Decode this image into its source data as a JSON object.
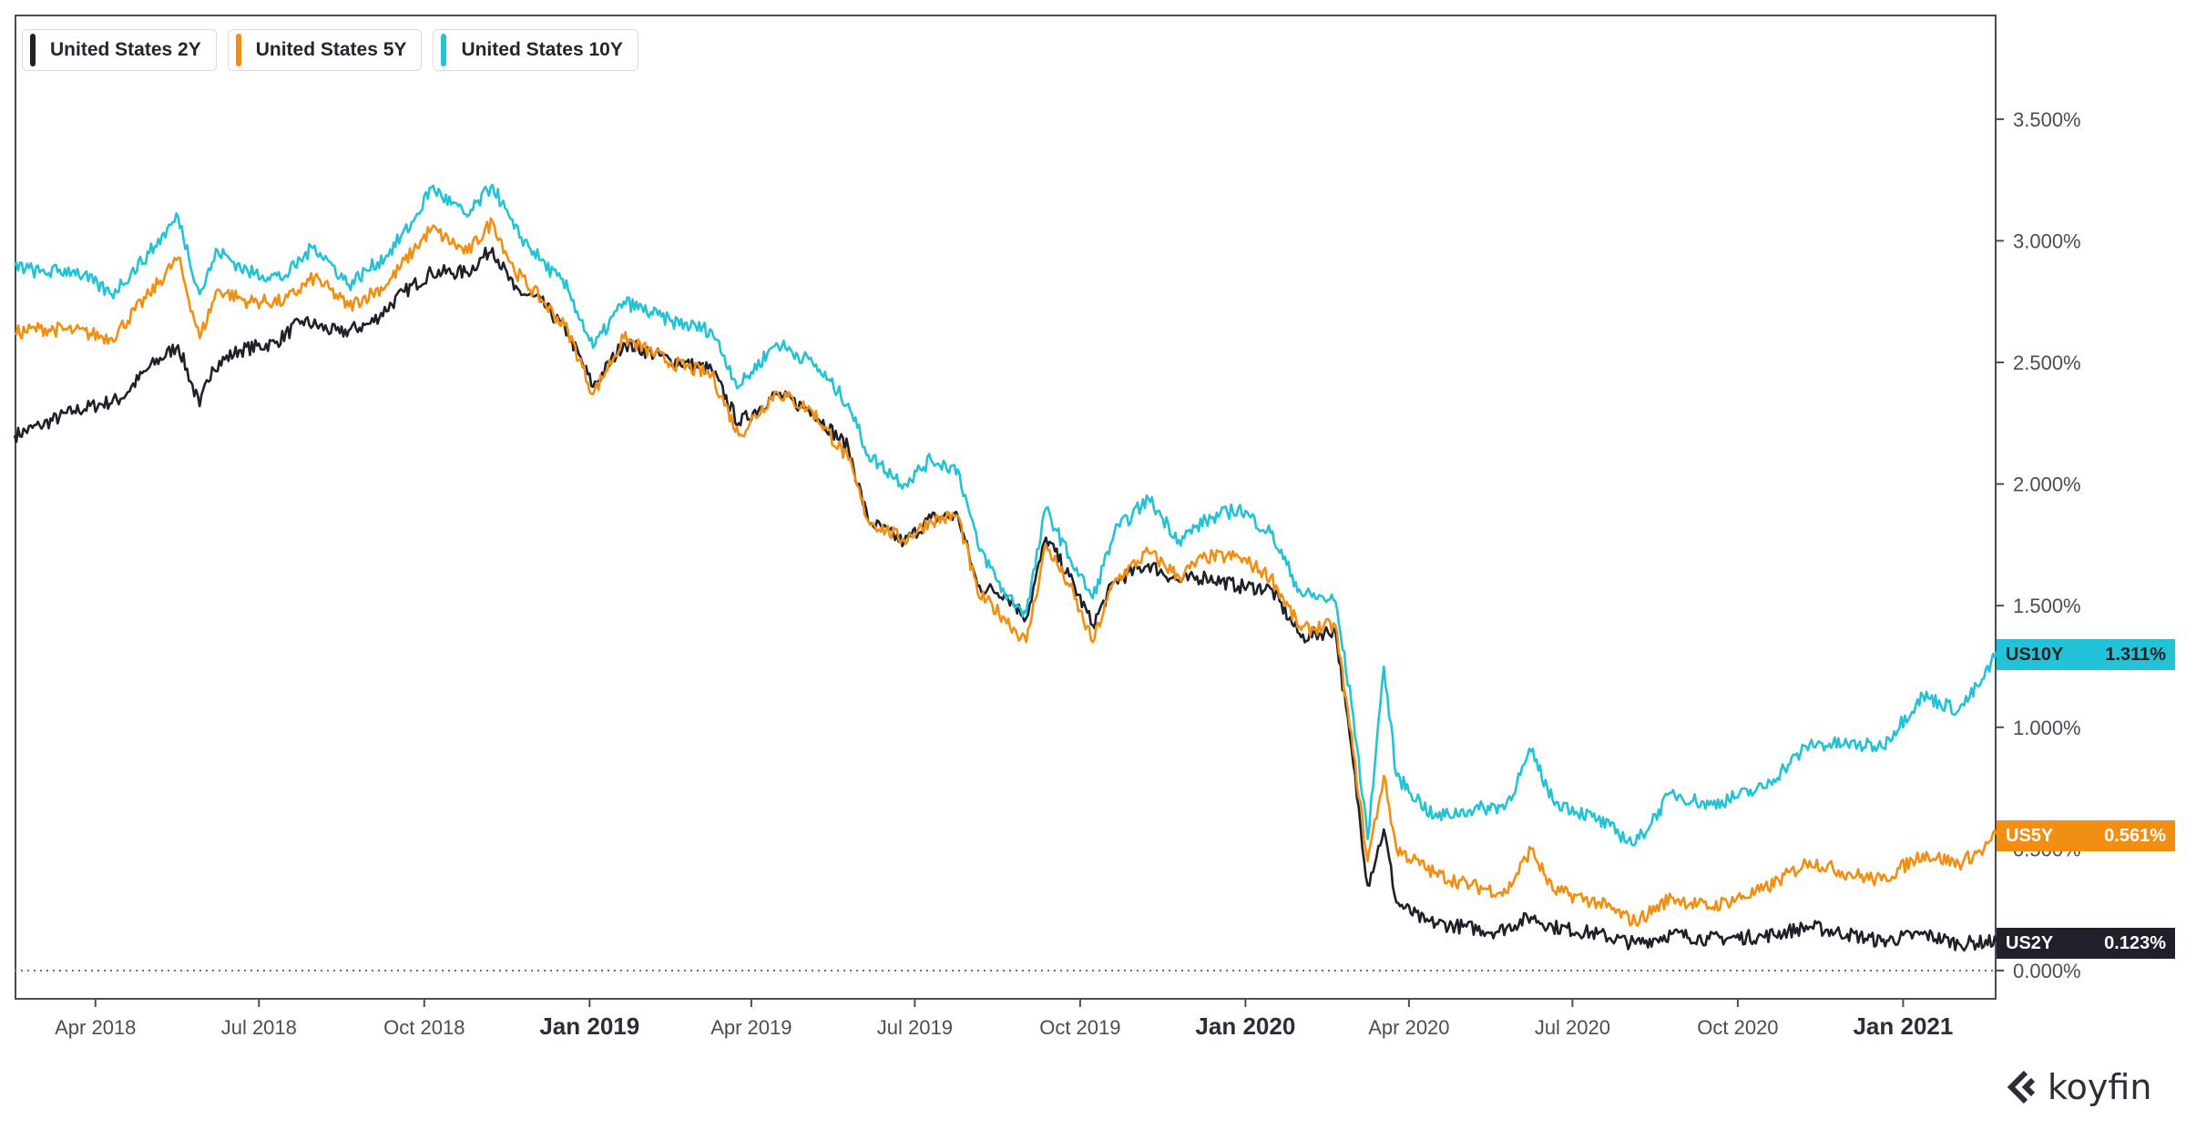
{
  "legend": [
    {
      "name": "United States 2Y",
      "color": "#1f212a"
    },
    {
      "name": "United States 5Y",
      "color": "#f28e11"
    },
    {
      "name": "United States 10Y",
      "color": "#22c3d6"
    }
  ],
  "badges": [
    {
      "ticker": "US10Y",
      "value": "1.311%",
      "bg": "#22c3d6",
      "text_color": "#1f212a"
    },
    {
      "ticker": "US5Y",
      "value": "0.561%",
      "bg": "#f28e11",
      "text_color": "#ffffff"
    },
    {
      "ticker": "US2Y",
      "value": "0.123%",
      "bg": "#1f212a",
      "text_color": "#ffffff"
    }
  ],
  "logo": {
    "text": "koyfin"
  },
  "chart_data": {
    "type": "line",
    "x_axis": {
      "type": "date",
      "range": [
        "2018-02-15",
        "2021-02-22"
      ],
      "ticks": [
        {
          "label": "Apr 2018",
          "date": "2018-04-01",
          "bold": false
        },
        {
          "label": "Jul 2018",
          "date": "2018-07-01",
          "bold": false
        },
        {
          "label": "Oct 2018",
          "date": "2018-10-01",
          "bold": false
        },
        {
          "label": "Jan 2019",
          "date": "2019-01-01",
          "bold": true
        },
        {
          "label": "Apr 2019",
          "date": "2019-04-01",
          "bold": false
        },
        {
          "label": "Jul 2019",
          "date": "2019-07-01",
          "bold": false
        },
        {
          "label": "Oct 2019",
          "date": "2019-10-01",
          "bold": false
        },
        {
          "label": "Jan 2020",
          "date": "2020-01-01",
          "bold": true
        },
        {
          "label": "Apr 2020",
          "date": "2020-04-01",
          "bold": false
        },
        {
          "label": "Jul 2020",
          "date": "2020-07-01",
          "bold": false
        },
        {
          "label": "Oct 2020",
          "date": "2020-10-01",
          "bold": false
        },
        {
          "label": "Jan 2021",
          "date": "2021-01-01",
          "bold": true
        }
      ]
    },
    "y_axis": {
      "unit": "%",
      "position": "right",
      "ylim": [
        -0.12,
        3.93
      ],
      "ticks": [
        {
          "value": 0.0,
          "label": "0.000%"
        },
        {
          "value": 0.5,
          "label": "0.500%"
        },
        {
          "value": 1.0,
          "label": "1.000%"
        },
        {
          "value": 1.5,
          "label": "1.500%"
        },
        {
          "value": 2.0,
          "label": "2.000%"
        },
        {
          "value": 2.5,
          "label": "2.500%"
        },
        {
          "value": 3.0,
          "label": "3.000%"
        },
        {
          "value": 3.5,
          "label": "3.500%"
        }
      ]
    },
    "grid": false,
    "zero_line": "dotted",
    "legend_position": "top-left",
    "series": [
      {
        "name": "United States 2Y",
        "color": "#1f212a",
        "points": [
          [
            "2018-02-15",
            2.2
          ],
          [
            "2018-03-01",
            2.24
          ],
          [
            "2018-03-20",
            2.3
          ],
          [
            "2018-04-15",
            2.35
          ],
          [
            "2018-05-01",
            2.48
          ],
          [
            "2018-05-17",
            2.57
          ],
          [
            "2018-05-29",
            2.32
          ],
          [
            "2018-06-05",
            2.48
          ],
          [
            "2018-06-20",
            2.55
          ],
          [
            "2018-07-10",
            2.58
          ],
          [
            "2018-07-25",
            2.67
          ],
          [
            "2018-08-15",
            2.62
          ],
          [
            "2018-09-01",
            2.66
          ],
          [
            "2018-09-20",
            2.79
          ],
          [
            "2018-10-05",
            2.87
          ],
          [
            "2018-10-25",
            2.87
          ],
          [
            "2018-11-08",
            2.97
          ],
          [
            "2018-11-20",
            2.8
          ],
          [
            "2018-12-05",
            2.75
          ],
          [
            "2018-12-20",
            2.62
          ],
          [
            "2019-01-03",
            2.4
          ],
          [
            "2019-01-20",
            2.58
          ],
          [
            "2019-02-15",
            2.51
          ],
          [
            "2019-03-10",
            2.47
          ],
          [
            "2019-03-25",
            2.25
          ],
          [
            "2019-04-15",
            2.37
          ],
          [
            "2019-05-05",
            2.3
          ],
          [
            "2019-05-25",
            2.15
          ],
          [
            "2019-06-05",
            1.85
          ],
          [
            "2019-06-25",
            1.76
          ],
          [
            "2019-07-10",
            1.86
          ],
          [
            "2019-07-25",
            1.87
          ],
          [
            "2019-08-05",
            1.58
          ],
          [
            "2019-08-20",
            1.55
          ],
          [
            "2019-09-01",
            1.45
          ],
          [
            "2019-09-12",
            1.78
          ],
          [
            "2019-09-25",
            1.62
          ],
          [
            "2019-10-08",
            1.42
          ],
          [
            "2019-10-20",
            1.6
          ],
          [
            "2019-11-08",
            1.67
          ],
          [
            "2019-11-25",
            1.6
          ],
          [
            "2019-12-10",
            1.62
          ],
          [
            "2019-12-28",
            1.58
          ],
          [
            "2020-01-15",
            1.57
          ],
          [
            "2020-02-01",
            1.37
          ],
          [
            "2020-02-20",
            1.4
          ],
          [
            "2020-03-01",
            0.85
          ],
          [
            "2020-03-09",
            0.35
          ],
          [
            "2020-03-18",
            0.58
          ],
          [
            "2020-03-25",
            0.28
          ],
          [
            "2020-04-10",
            0.2
          ],
          [
            "2020-05-01",
            0.18
          ],
          [
            "2020-05-20",
            0.16
          ],
          [
            "2020-06-08",
            0.22
          ],
          [
            "2020-06-20",
            0.18
          ],
          [
            "2020-07-15",
            0.15
          ],
          [
            "2020-08-05",
            0.11
          ],
          [
            "2020-08-25",
            0.15
          ],
          [
            "2020-09-15",
            0.13
          ],
          [
            "2020-10-15",
            0.14
          ],
          [
            "2020-11-10",
            0.18
          ],
          [
            "2020-12-01",
            0.15
          ],
          [
            "2020-12-20",
            0.12
          ],
          [
            "2021-01-12",
            0.15
          ],
          [
            "2021-02-01",
            0.11
          ],
          [
            "2021-02-22",
            0.12
          ]
        ]
      },
      {
        "name": "United States 5Y",
        "color": "#f28e11",
        "points": [
          [
            "2018-02-15",
            2.62
          ],
          [
            "2018-03-01",
            2.64
          ],
          [
            "2018-03-20",
            2.63
          ],
          [
            "2018-04-10",
            2.6
          ],
          [
            "2018-05-01",
            2.78
          ],
          [
            "2018-05-17",
            2.93
          ],
          [
            "2018-05-29",
            2.6
          ],
          [
            "2018-06-08",
            2.8
          ],
          [
            "2018-06-25",
            2.75
          ],
          [
            "2018-07-15",
            2.75
          ],
          [
            "2018-08-01",
            2.85
          ],
          [
            "2018-08-20",
            2.73
          ],
          [
            "2018-09-10",
            2.82
          ],
          [
            "2018-09-25",
            2.96
          ],
          [
            "2018-10-05",
            3.05
          ],
          [
            "2018-10-25",
            2.95
          ],
          [
            "2018-11-08",
            3.08
          ],
          [
            "2018-11-20",
            2.88
          ],
          [
            "2018-12-05",
            2.76
          ],
          [
            "2018-12-20",
            2.63
          ],
          [
            "2019-01-03",
            2.37
          ],
          [
            "2019-01-20",
            2.6
          ],
          [
            "2019-02-15",
            2.5
          ],
          [
            "2019-03-10",
            2.45
          ],
          [
            "2019-03-25",
            2.2
          ],
          [
            "2019-04-15",
            2.38
          ],
          [
            "2019-05-05",
            2.3
          ],
          [
            "2019-05-25",
            2.1
          ],
          [
            "2019-06-05",
            1.85
          ],
          [
            "2019-06-25",
            1.77
          ],
          [
            "2019-07-10",
            1.85
          ],
          [
            "2019-07-25",
            1.87
          ],
          [
            "2019-08-05",
            1.55
          ],
          [
            "2019-08-20",
            1.45
          ],
          [
            "2019-09-01",
            1.35
          ],
          [
            "2019-09-12",
            1.75
          ],
          [
            "2019-09-25",
            1.58
          ],
          [
            "2019-10-08",
            1.35
          ],
          [
            "2019-10-20",
            1.6
          ],
          [
            "2019-11-08",
            1.72
          ],
          [
            "2019-11-25",
            1.62
          ],
          [
            "2019-12-10",
            1.7
          ],
          [
            "2019-12-28",
            1.7
          ],
          [
            "2020-01-15",
            1.62
          ],
          [
            "2020-02-01",
            1.4
          ],
          [
            "2020-02-20",
            1.42
          ],
          [
            "2020-03-01",
            0.9
          ],
          [
            "2020-03-09",
            0.45
          ],
          [
            "2020-03-18",
            0.8
          ],
          [
            "2020-03-25",
            0.5
          ],
          [
            "2020-04-15",
            0.4
          ],
          [
            "2020-05-05",
            0.35
          ],
          [
            "2020-05-25",
            0.32
          ],
          [
            "2020-06-08",
            0.5
          ],
          [
            "2020-06-20",
            0.33
          ],
          [
            "2020-07-15",
            0.28
          ],
          [
            "2020-08-05",
            0.2
          ],
          [
            "2020-08-25",
            0.3
          ],
          [
            "2020-09-15",
            0.26
          ],
          [
            "2020-10-15",
            0.33
          ],
          [
            "2020-11-10",
            0.45
          ],
          [
            "2020-12-01",
            0.4
          ],
          [
            "2020-12-20",
            0.37
          ],
          [
            "2021-01-12",
            0.48
          ],
          [
            "2021-02-01",
            0.44
          ],
          [
            "2021-02-15",
            0.5
          ],
          [
            "2021-02-22",
            0.56
          ]
        ]
      },
      {
        "name": "United States 10Y",
        "color": "#22c3d6",
        "points": [
          [
            "2018-02-15",
            2.9
          ],
          [
            "2018-03-01",
            2.87
          ],
          [
            "2018-03-20",
            2.88
          ],
          [
            "2018-04-10",
            2.78
          ],
          [
            "2018-05-01",
            2.95
          ],
          [
            "2018-05-17",
            3.1
          ],
          [
            "2018-05-29",
            2.78
          ],
          [
            "2018-06-08",
            2.96
          ],
          [
            "2018-06-25",
            2.87
          ],
          [
            "2018-07-15",
            2.85
          ],
          [
            "2018-08-01",
            2.98
          ],
          [
            "2018-08-20",
            2.82
          ],
          [
            "2018-09-10",
            2.94
          ],
          [
            "2018-09-25",
            3.08
          ],
          [
            "2018-10-05",
            3.22
          ],
          [
            "2018-10-25",
            3.1
          ],
          [
            "2018-11-08",
            3.23
          ],
          [
            "2018-11-20",
            3.05
          ],
          [
            "2018-12-05",
            2.92
          ],
          [
            "2018-12-20",
            2.8
          ],
          [
            "2019-01-03",
            2.56
          ],
          [
            "2019-01-20",
            2.75
          ],
          [
            "2019-02-15",
            2.67
          ],
          [
            "2019-03-10",
            2.63
          ],
          [
            "2019-03-25",
            2.4
          ],
          [
            "2019-04-15",
            2.58
          ],
          [
            "2019-05-05",
            2.5
          ],
          [
            "2019-05-25",
            2.33
          ],
          [
            "2019-06-05",
            2.12
          ],
          [
            "2019-06-25",
            2.0
          ],
          [
            "2019-07-10",
            2.1
          ],
          [
            "2019-07-25",
            2.06
          ],
          [
            "2019-08-05",
            1.75
          ],
          [
            "2019-08-20",
            1.55
          ],
          [
            "2019-09-01",
            1.47
          ],
          [
            "2019-09-12",
            1.9
          ],
          [
            "2019-09-25",
            1.7
          ],
          [
            "2019-10-08",
            1.53
          ],
          [
            "2019-10-20",
            1.8
          ],
          [
            "2019-11-08",
            1.94
          ],
          [
            "2019-11-25",
            1.77
          ],
          [
            "2019-12-10",
            1.85
          ],
          [
            "2019-12-28",
            1.9
          ],
          [
            "2020-01-15",
            1.8
          ],
          [
            "2020-02-01",
            1.55
          ],
          [
            "2020-02-20",
            1.52
          ],
          [
            "2020-03-01",
            1.05
          ],
          [
            "2020-03-09",
            0.54
          ],
          [
            "2020-03-18",
            1.25
          ],
          [
            "2020-03-25",
            0.8
          ],
          [
            "2020-04-15",
            0.63
          ],
          [
            "2020-05-05",
            0.66
          ],
          [
            "2020-05-25",
            0.68
          ],
          [
            "2020-06-08",
            0.9
          ],
          [
            "2020-06-20",
            0.7
          ],
          [
            "2020-07-15",
            0.62
          ],
          [
            "2020-08-05",
            0.52
          ],
          [
            "2020-08-25",
            0.73
          ],
          [
            "2020-09-15",
            0.68
          ],
          [
            "2020-10-15",
            0.75
          ],
          [
            "2020-11-10",
            0.93
          ],
          [
            "2020-12-01",
            0.93
          ],
          [
            "2020-12-20",
            0.92
          ],
          [
            "2021-01-12",
            1.13
          ],
          [
            "2021-02-01",
            1.07
          ],
          [
            "2021-02-15",
            1.2
          ],
          [
            "2021-02-22",
            1.31
          ]
        ]
      }
    ]
  }
}
